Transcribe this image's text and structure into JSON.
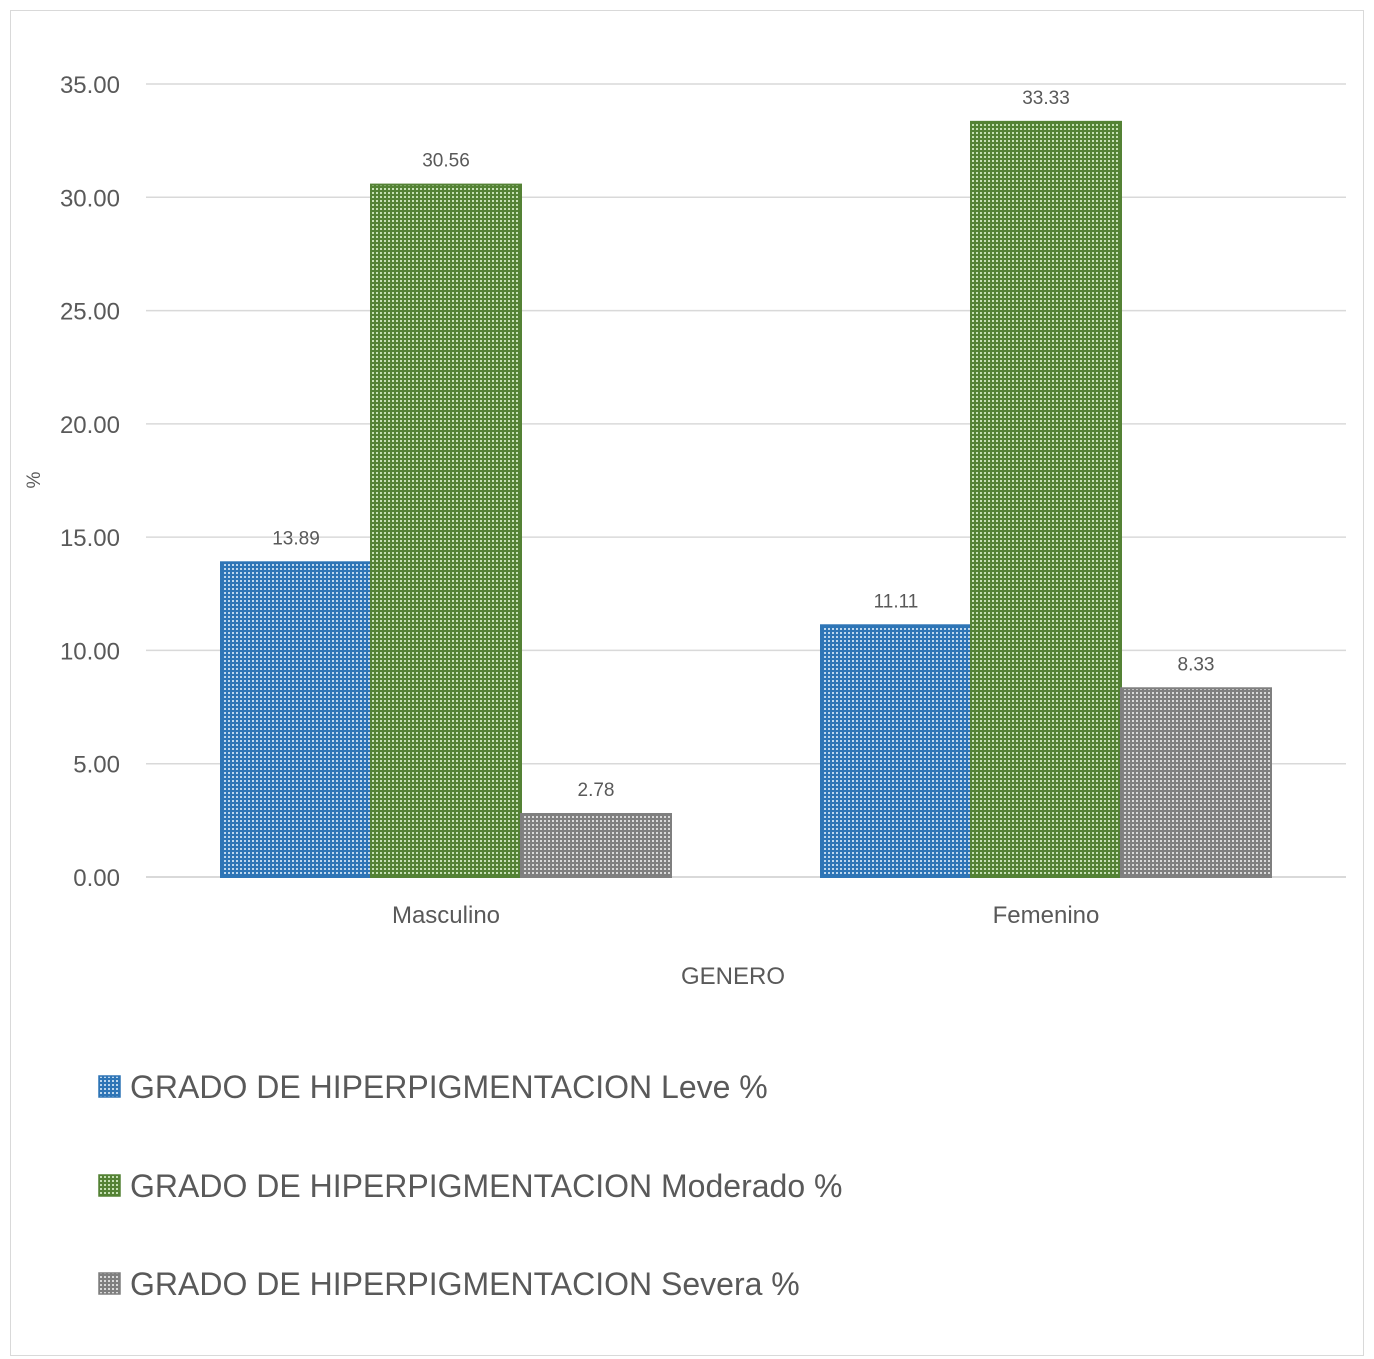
{
  "chart_data": {
    "type": "bar",
    "categories": [
      "Masculino",
      "Femenino"
    ],
    "series": [
      {
        "name": "GRADO DE HIPERPIGMENTACION Leve %",
        "values": [
          13.89,
          11.11
        ],
        "color": "#2e75b6"
      },
      {
        "name": "GRADO DE HIPERPIGMENTACION Moderado %",
        "values": [
          30.56,
          33.33
        ],
        "color": "#548235"
      },
      {
        "name": "GRADO DE HIPERPIGMENTACION Severa %",
        "values": [
          2.78,
          8.33
        ],
        "color": "#7f7f7f"
      }
    ],
    "data_labels": [
      [
        "13.89",
        "11.11"
      ],
      [
        "30.56",
        "33.33"
      ],
      [
        "2.78",
        "8.33"
      ]
    ],
    "xlabel": "GENERO",
    "ylabel": "%",
    "ylim": [
      0,
      35
    ],
    "yticks": [
      "0.00",
      "5.00",
      "10.00",
      "15.00",
      "20.00",
      "25.00",
      "30.00",
      "35.00"
    ],
    "grid": true,
    "legend_position": "bottom"
  }
}
